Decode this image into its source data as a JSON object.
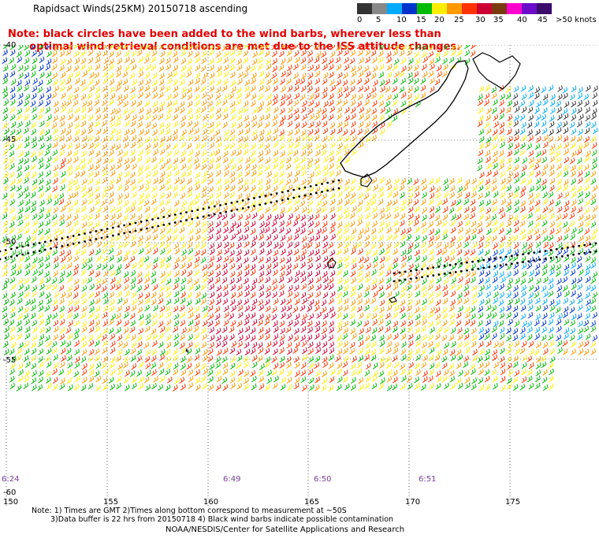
{
  "title": "Rapidsact Winds(25KM) 20150718 ascending",
  "note": "Note: black circles have been added to the wind barbs, wherever less than\n      optimal wind retrieval conditions are met due to the ISS attitude changes.",
  "scale": {
    "labels": [
      "0",
      "5",
      "10",
      "15",
      "20",
      "25",
      "30",
      "35",
      "40",
      "45",
      ">50 knots"
    ],
    "colors": [
      "#333333",
      "#888888",
      "#00aaff",
      "#0033cc",
      "#00bb00",
      "#ffee00",
      "#ff9900",
      "#ff3300",
      "#cc0033",
      "#7a3a10",
      "#ff00cc",
      "#6b0ac8",
      "#3b0a6a"
    ]
  },
  "axes": {
    "lon_labels": [
      "150",
      "155",
      "160",
      "165",
      "170",
      "175"
    ],
    "lat_labels": [
      "-40",
      "-45",
      "-50",
      "-55",
      "-60"
    ],
    "time_labels": [
      "6:24",
      "6:49",
      "6:50",
      "6:51"
    ]
  },
  "footer": {
    "line1": "Note: 1) Times are GMT 2)Times along bottom correspond to measurement at ~50S",
    "line2": "3)Data buffer is 22 hrs from 20150718 4) Black wind barbs indicate possible contamination",
    "credit": "NOAA/NESDIS/Center for Satellite Applications and Research"
  },
  "map_region": "South Pacific / Tasman Sea, New Zealand"
}
